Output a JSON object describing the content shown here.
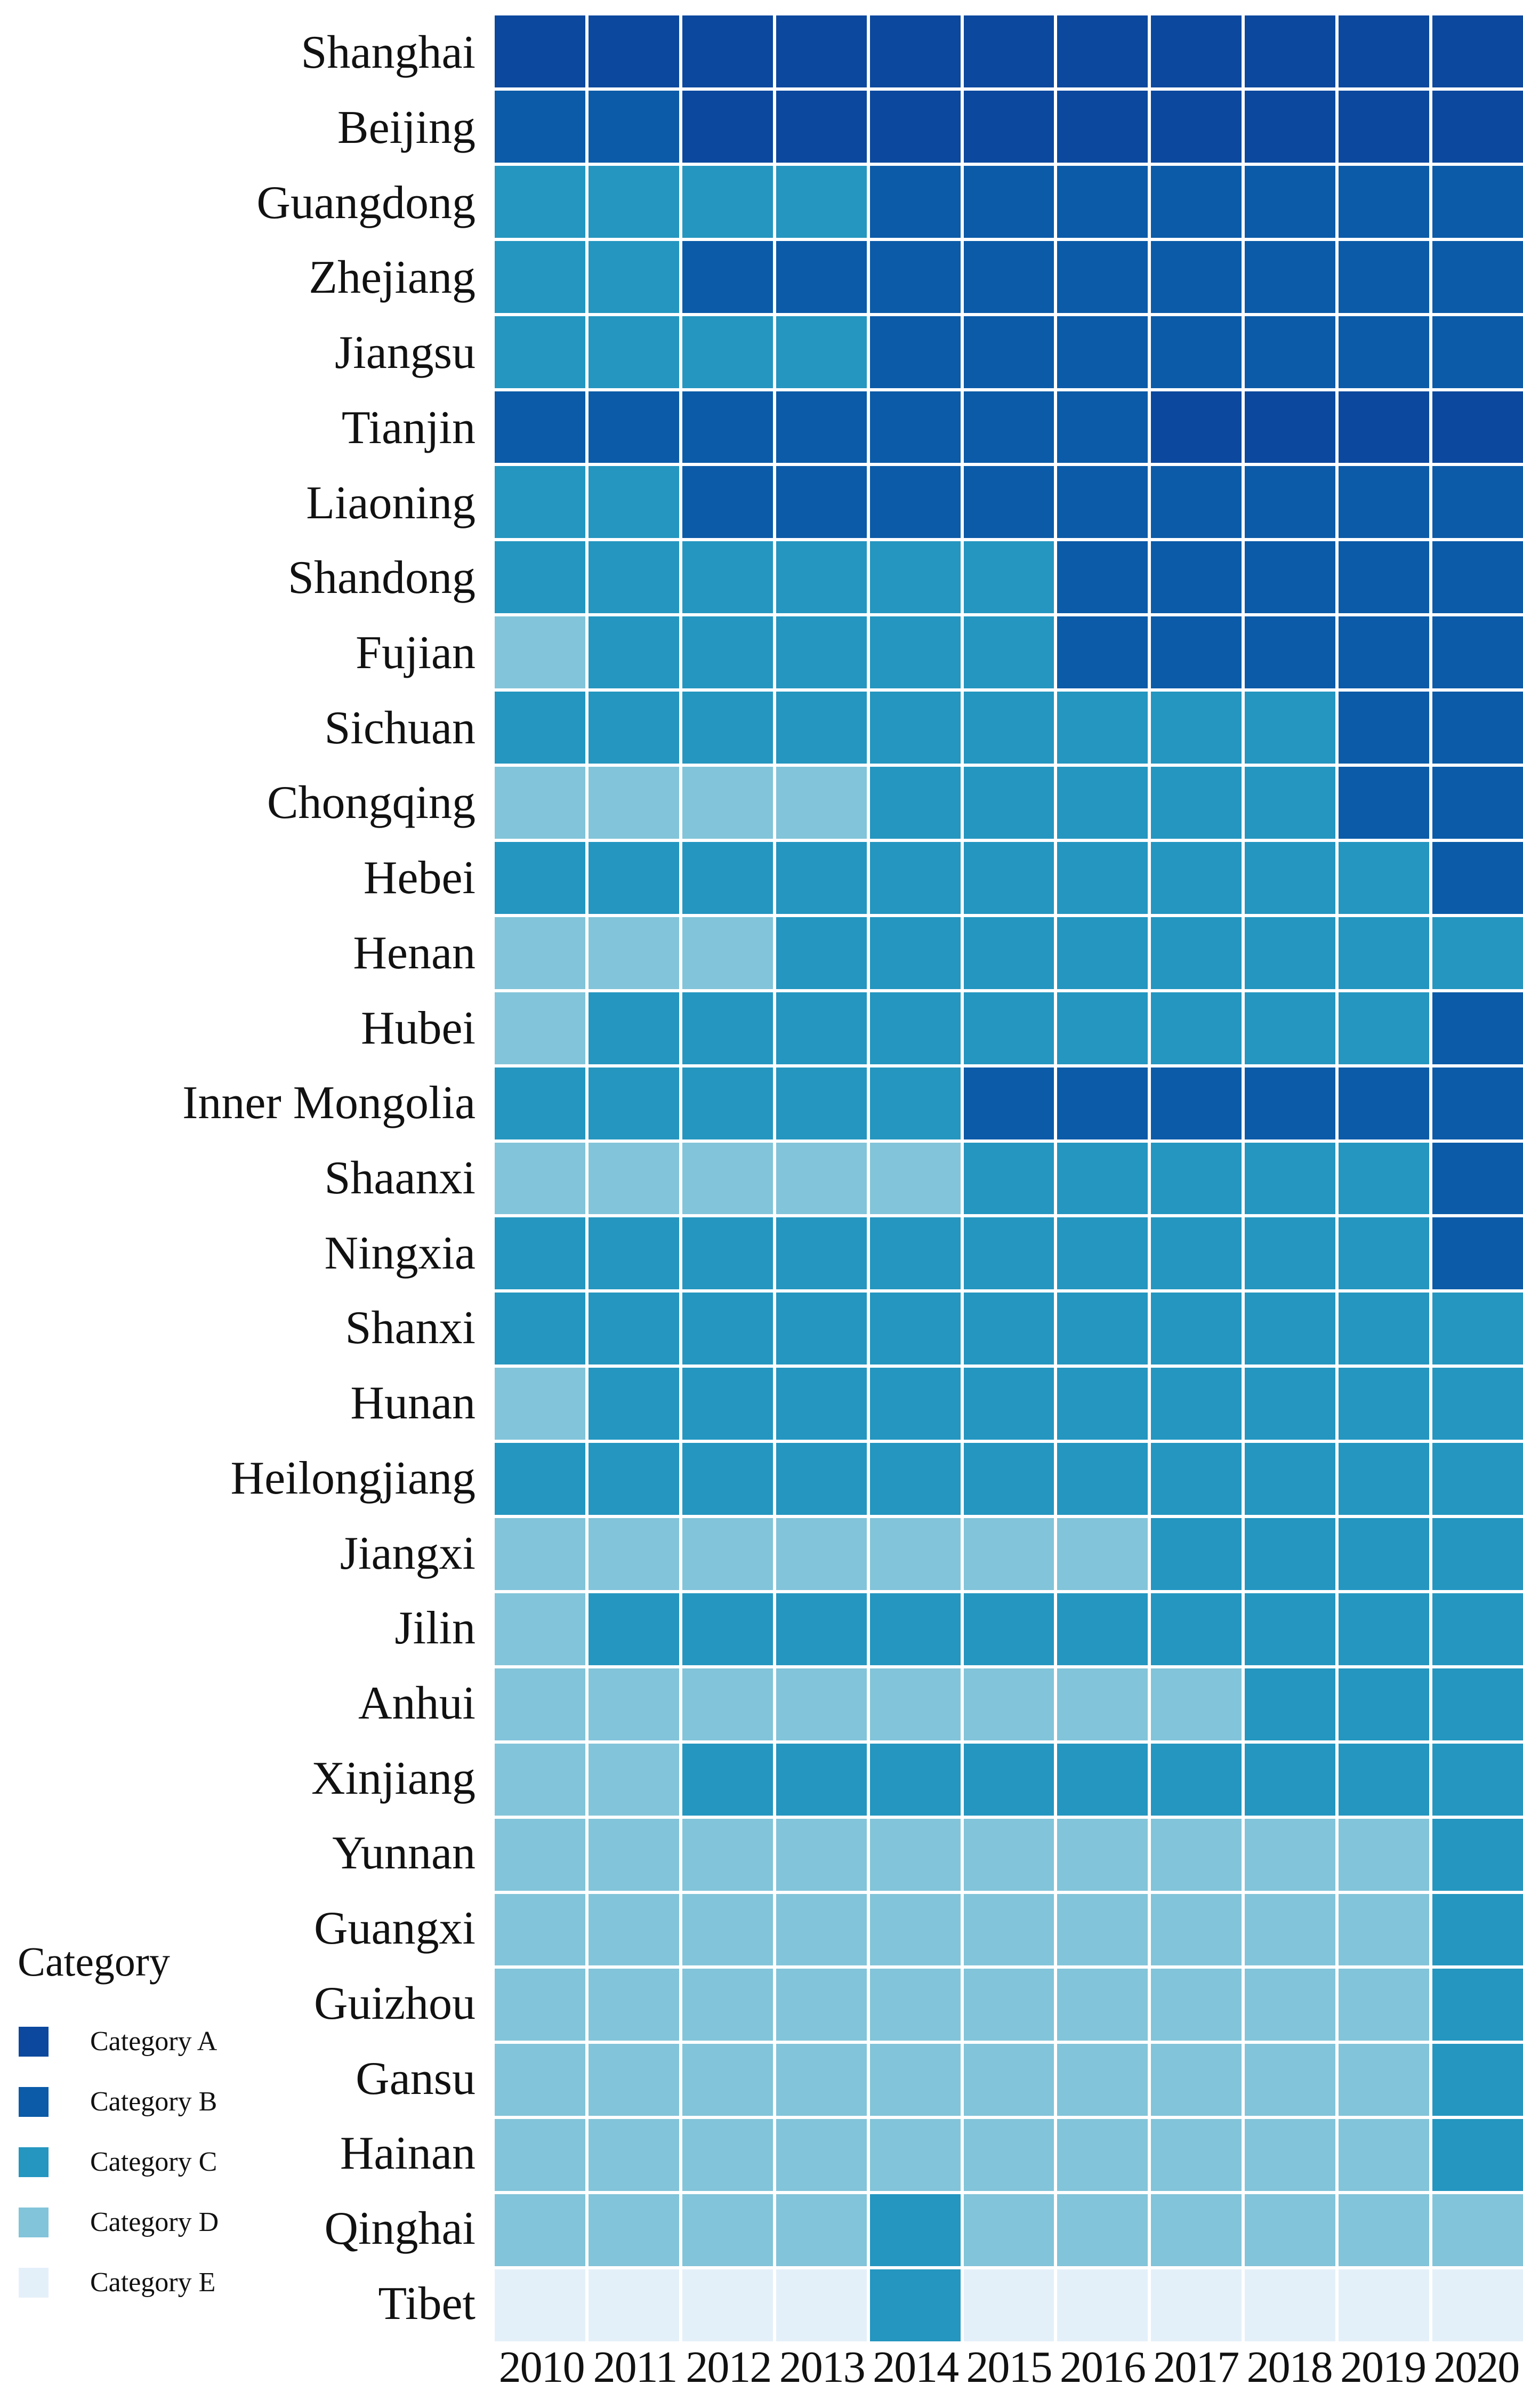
{
  "page": {
    "background": "#ffffff",
    "gridline_color": "#ffffff"
  },
  "legend": {
    "title": "Category",
    "entries": [
      {
        "label": "Category A",
        "key": "A"
      },
      {
        "label": "Category B",
        "key": "B"
      },
      {
        "label": "Category C",
        "key": "C"
      },
      {
        "label": "Category D",
        "key": "D"
      },
      {
        "label": "Category E",
        "key": "E"
      }
    ]
  },
  "chart_data": {
    "type": "heatmap",
    "title": "",
    "xlabel": "",
    "ylabel": "",
    "legend_position": "bottom-left",
    "grid": "white gridlines between cells",
    "category_colors": {
      "A": "#0b489e",
      "B": "#0b5ba8",
      "C": "#2496c0",
      "D": "#82c4d9",
      "E": "#e4f0f9"
    },
    "x_categories": [
      "2010",
      "2011",
      "2012",
      "2013",
      "2014",
      "2015",
      "2016",
      "2017",
      "2018",
      "2019",
      "2020"
    ],
    "rows": [
      {
        "name": "Shanghai",
        "values": [
          "A",
          "A",
          "A",
          "A",
          "A",
          "A",
          "A",
          "A",
          "A",
          "A",
          "A"
        ]
      },
      {
        "name": "Beijing",
        "values": [
          "B",
          "B",
          "A",
          "A",
          "A",
          "A",
          "A",
          "A",
          "A",
          "A",
          "A"
        ]
      },
      {
        "name": "Guangdong",
        "values": [
          "C",
          "C",
          "C",
          "C",
          "B",
          "B",
          "B",
          "B",
          "B",
          "B",
          "B"
        ]
      },
      {
        "name": "Zhejiang",
        "values": [
          "C",
          "C",
          "B",
          "B",
          "B",
          "B",
          "B",
          "B",
          "B",
          "B",
          "B"
        ]
      },
      {
        "name": "Jiangsu",
        "values": [
          "C",
          "C",
          "C",
          "C",
          "B",
          "B",
          "B",
          "B",
          "B",
          "B",
          "B"
        ]
      },
      {
        "name": "Tianjin",
        "values": [
          "B",
          "B",
          "B",
          "B",
          "B",
          "B",
          "B",
          "A",
          "A",
          "A",
          "A"
        ]
      },
      {
        "name": "Liaoning",
        "values": [
          "C",
          "C",
          "B",
          "B",
          "B",
          "B",
          "B",
          "B",
          "B",
          "B",
          "B"
        ]
      },
      {
        "name": "Shandong",
        "values": [
          "C",
          "C",
          "C",
          "C",
          "C",
          "C",
          "B",
          "B",
          "B",
          "B",
          "B"
        ]
      },
      {
        "name": "Fujian",
        "values": [
          "D",
          "C",
          "C",
          "C",
          "C",
          "C",
          "B",
          "B",
          "B",
          "B",
          "B"
        ]
      },
      {
        "name": "Sichuan",
        "values": [
          "C",
          "C",
          "C",
          "C",
          "C",
          "C",
          "C",
          "C",
          "C",
          "B",
          "B"
        ]
      },
      {
        "name": "Chongqing",
        "values": [
          "D",
          "D",
          "D",
          "D",
          "C",
          "C",
          "C",
          "C",
          "C",
          "B",
          "B"
        ]
      },
      {
        "name": "Hebei",
        "values": [
          "C",
          "C",
          "C",
          "C",
          "C",
          "C",
          "C",
          "C",
          "C",
          "C",
          "B"
        ]
      },
      {
        "name": "Henan",
        "values": [
          "D",
          "D",
          "D",
          "C",
          "C",
          "C",
          "C",
          "C",
          "C",
          "C",
          "C"
        ]
      },
      {
        "name": "Hubei",
        "values": [
          "D",
          "C",
          "C",
          "C",
          "C",
          "C",
          "C",
          "C",
          "C",
          "C",
          "B"
        ]
      },
      {
        "name": "Inner Mongolia",
        "values": [
          "C",
          "C",
          "C",
          "C",
          "C",
          "B",
          "B",
          "B",
          "B",
          "B",
          "B"
        ]
      },
      {
        "name": "Shaanxi",
        "values": [
          "D",
          "D",
          "D",
          "D",
          "D",
          "C",
          "C",
          "C",
          "C",
          "C",
          "B"
        ]
      },
      {
        "name": "Ningxia",
        "values": [
          "C",
          "C",
          "C",
          "C",
          "C",
          "C",
          "C",
          "C",
          "C",
          "C",
          "B"
        ]
      },
      {
        "name": "Shanxi",
        "values": [
          "C",
          "C",
          "C",
          "C",
          "C",
          "C",
          "C",
          "C",
          "C",
          "C",
          "C"
        ]
      },
      {
        "name": "Hunan",
        "values": [
          "D",
          "C",
          "C",
          "C",
          "C",
          "C",
          "C",
          "C",
          "C",
          "C",
          "C"
        ]
      },
      {
        "name": "Heilongjiang",
        "values": [
          "C",
          "C",
          "C",
          "C",
          "C",
          "C",
          "C",
          "C",
          "C",
          "C",
          "C"
        ]
      },
      {
        "name": "Jiangxi",
        "values": [
          "D",
          "D",
          "D",
          "D",
          "D",
          "D",
          "D",
          "C",
          "C",
          "C",
          "C"
        ]
      },
      {
        "name": "Jilin",
        "values": [
          "D",
          "C",
          "C",
          "C",
          "C",
          "C",
          "C",
          "C",
          "C",
          "C",
          "C"
        ]
      },
      {
        "name": "Anhui",
        "values": [
          "D",
          "D",
          "D",
          "D",
          "D",
          "D",
          "D",
          "D",
          "C",
          "C",
          "C"
        ]
      },
      {
        "name": "Xinjiang",
        "values": [
          "D",
          "D",
          "C",
          "C",
          "C",
          "C",
          "C",
          "C",
          "C",
          "C",
          "C"
        ]
      },
      {
        "name": "Yunnan",
        "values": [
          "D",
          "D",
          "D",
          "D",
          "D",
          "D",
          "D",
          "D",
          "D",
          "D",
          "C"
        ]
      },
      {
        "name": "Guangxi",
        "values": [
          "D",
          "D",
          "D",
          "D",
          "D",
          "D",
          "D",
          "D",
          "D",
          "D",
          "C"
        ]
      },
      {
        "name": "Guizhou",
        "values": [
          "D",
          "D",
          "D",
          "D",
          "D",
          "D",
          "D",
          "D",
          "D",
          "D",
          "C"
        ]
      },
      {
        "name": "Gansu",
        "values": [
          "D",
          "D",
          "D",
          "D",
          "D",
          "D",
          "D",
          "D",
          "D",
          "D",
          "C"
        ]
      },
      {
        "name": "Hainan",
        "values": [
          "D",
          "D",
          "D",
          "D",
          "D",
          "D",
          "D",
          "D",
          "D",
          "D",
          "C"
        ]
      },
      {
        "name": "Qinghai",
        "values": [
          "D",
          "D",
          "D",
          "D",
          "C",
          "D",
          "D",
          "D",
          "D",
          "D",
          "D"
        ]
      },
      {
        "name": "Tibet",
        "values": [
          "E",
          "E",
          "E",
          "E",
          "C",
          "E",
          "E",
          "E",
          "E",
          "E",
          "E"
        ]
      }
    ]
  }
}
